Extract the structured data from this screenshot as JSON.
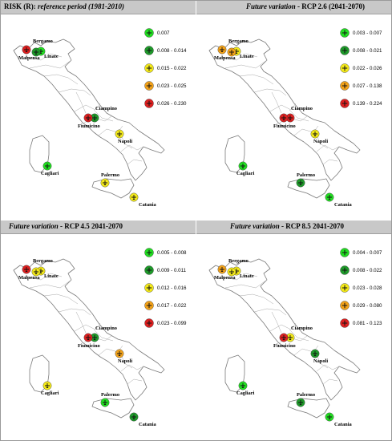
{
  "panels": [
    {
      "title_bold": "RISK (R): ",
      "title_italic": "reference period (1981-2010)",
      "title_tail": "",
      "legend": [
        {
          "label": "0.007",
          "color": "#22dd22"
        },
        {
          "label": "0.008 - 0.014",
          "color": "#1e9a2a"
        },
        {
          "label": "0.015 - 0.022",
          "color": "#f2e81a"
        },
        {
          "label": "0.023 - 0.025",
          "color": "#f2a21a"
        },
        {
          "label": "0.026 - 0.230",
          "color": "#dd2020"
        }
      ],
      "airports": [
        {
          "name": "Bergamo",
          "color": "#22dd22",
          "p": "bergamo"
        },
        {
          "name": "Malpensa",
          "color": "#dd2020",
          "p": "malpensa"
        },
        {
          "name": "Linate",
          "color": "#1e9a2a",
          "p": "linate"
        },
        {
          "name": "Ciampino",
          "color": "#1e9a2a",
          "p": "ciampino"
        },
        {
          "name": "Fiumicino",
          "color": "#dd2020",
          "p": "fiumicino"
        },
        {
          "name": "Napoli",
          "color": "#f2e81a",
          "p": "napoli"
        },
        {
          "name": "Cagliari",
          "color": "#22dd22",
          "p": "cagliari"
        },
        {
          "name": "Palermo",
          "color": "#f2e81a",
          "p": "palermo"
        },
        {
          "name": "Catania",
          "color": "#f2e81a",
          "p": "catania"
        }
      ]
    },
    {
      "title_bold": "",
      "title_italic": "Future variation",
      "title_tail": " - RCP 2.6 (2041-2070)",
      "legend": [
        {
          "label": "0.003 - 0.007",
          "color": "#22dd22"
        },
        {
          "label": "0.008 - 0.021",
          "color": "#1e9a2a"
        },
        {
          "label": "0.022 - 0.026",
          "color": "#f2e81a"
        },
        {
          "label": "0.027 - 0.138",
          "color": "#f2a21a"
        },
        {
          "label": "0.139 - 0.224",
          "color": "#dd2020"
        }
      ],
      "airports": [
        {
          "name": "Bergamo",
          "color": "#f2e81a",
          "p": "bergamo"
        },
        {
          "name": "Malpensa",
          "color": "#f2a21a",
          "p": "malpensa"
        },
        {
          "name": "Linate",
          "color": "#f2a21a",
          "p": "linate"
        },
        {
          "name": "Ciampino",
          "color": "#dd2020",
          "p": "ciampino"
        },
        {
          "name": "Fiumicino",
          "color": "#dd2020",
          "p": "fiumicino"
        },
        {
          "name": "Napoli",
          "color": "#f2e81a",
          "p": "napoli"
        },
        {
          "name": "Cagliari",
          "color": "#22dd22",
          "p": "cagliari"
        },
        {
          "name": "Palermo",
          "color": "#1e9a2a",
          "p": "palermo"
        },
        {
          "name": "Catania",
          "color": "#22dd22",
          "p": "catania"
        }
      ]
    },
    {
      "title_bold": "",
      "title_italic": "Future variation",
      "title_tail": " - RCP 4.5 2041-2070",
      "legend": [
        {
          "label": "0.005 - 0.008",
          "color": "#22dd22"
        },
        {
          "label": "0.009 - 0.011",
          "color": "#1e9a2a"
        },
        {
          "label": "0.012 - 0.016",
          "color": "#f2e81a"
        },
        {
          "label": "0.017 - 0.022",
          "color": "#f2a21a"
        },
        {
          "label": "0.023 - 0.099",
          "color": "#dd2020"
        }
      ],
      "airports": [
        {
          "name": "Bergamo",
          "color": "#f2e81a",
          "p": "bergamo"
        },
        {
          "name": "Malpensa",
          "color": "#dd2020",
          "p": "malpensa"
        },
        {
          "name": "Linate",
          "color": "#f2e81a",
          "p": "linate"
        },
        {
          "name": "Ciampino",
          "color": "#1e9a2a",
          "p": "ciampino"
        },
        {
          "name": "Fiumicino",
          "color": "#dd2020",
          "p": "fiumicino"
        },
        {
          "name": "Napoli",
          "color": "#f2a21a",
          "p": "napoli"
        },
        {
          "name": "Cagliari",
          "color": "#f2e81a",
          "p": "cagliari"
        },
        {
          "name": "Palermo",
          "color": "#22dd22",
          "p": "palermo"
        },
        {
          "name": "Catania",
          "color": "#1e9a2a",
          "p": "catania"
        }
      ]
    },
    {
      "title_bold": "",
      "title_italic": "Future variation",
      "title_tail": " - RCP 8.5 2041-2070",
      "legend": [
        {
          "label": "0.004 - 0.007",
          "color": "#22dd22"
        },
        {
          "label": "0.008 - 0.022",
          "color": "#1e9a2a"
        },
        {
          "label": "0.023 - 0.028",
          "color": "#f2e81a"
        },
        {
          "label": "0.029 - 0.080",
          "color": "#f2a21a"
        },
        {
          "label": "0.081 - 0.123",
          "color": "#dd2020"
        }
      ],
      "airports": [
        {
          "name": "Bergamo",
          "color": "#f2e81a",
          "p": "bergamo"
        },
        {
          "name": "Malpensa",
          "color": "#f2a21a",
          "p": "malpensa"
        },
        {
          "name": "Linate",
          "color": "#f2e81a",
          "p": "linate"
        },
        {
          "name": "Ciampino",
          "color": "#f2e81a",
          "p": "ciampino"
        },
        {
          "name": "Fiumicino",
          "color": "#dd2020",
          "p": "fiumicino"
        },
        {
          "name": "Napoli",
          "color": "#1e9a2a",
          "p": "napoli"
        },
        {
          "name": "Cagliari",
          "color": "#22dd22",
          "p": "cagliari"
        },
        {
          "name": "Palermo",
          "color": "#1e9a2a",
          "p": "palermo"
        },
        {
          "name": "Catania",
          "color": "#22dd22",
          "p": "catania"
        }
      ]
    }
  ]
}
